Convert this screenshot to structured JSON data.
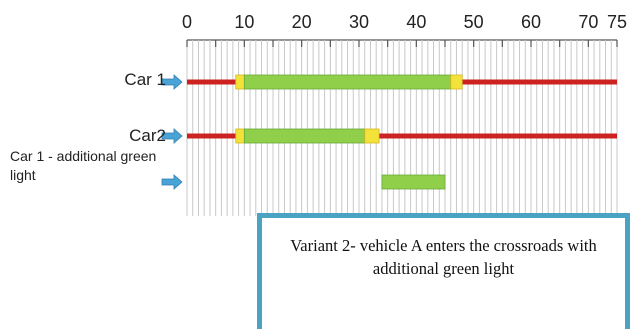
{
  "axis": {
    "min": 0,
    "max": 75,
    "minor_step": 1,
    "tick_labels": [
      "0",
      "10",
      "20",
      "30",
      "40",
      "50",
      "60",
      "70",
      "75"
    ],
    "tick_values": [
      0,
      10,
      20,
      30,
      40,
      50,
      60,
      70,
      75
    ]
  },
  "rows": [
    {
      "label": "Car 1",
      "bar": {
        "start": 0,
        "end": 75,
        "color": "#cc2222"
      },
      "segments": [
        {
          "start": 8.5,
          "end": 10,
          "color": "#f2e23a"
        },
        {
          "start": 10,
          "end": 46,
          "color": "#8fcf4a"
        },
        {
          "start": 46,
          "end": 48,
          "color": "#f2e23a"
        }
      ]
    },
    {
      "label": "Car2",
      "bar": {
        "start": 0,
        "end": 75,
        "color": "#cc2222"
      },
      "segments": [
        {
          "start": 8.5,
          "end": 10,
          "color": "#f2e23a"
        },
        {
          "start": 10,
          "end": 31,
          "color": "#8fcf4a"
        },
        {
          "start": 31,
          "end": 33.5,
          "color": "#f2e23a"
        }
      ]
    },
    {
      "label": "Car 1 - additional green light",
      "bar": null,
      "segments": [
        {
          "start": 34,
          "end": 45,
          "color": "#8fcf4a"
        }
      ]
    }
  ],
  "colors": {
    "arrow": "#4aa3d6",
    "grid": "#c8c8c8",
    "caption_border": "#4aa3c2"
  },
  "caption": "Variant 2- vehicle A enters the crossroads with additional green light"
}
